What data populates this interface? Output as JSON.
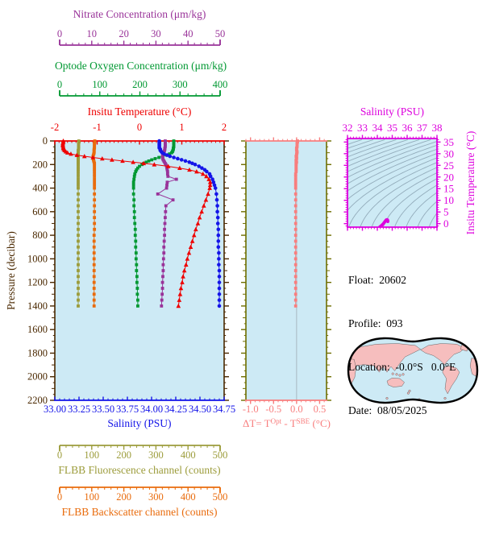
{
  "page": {
    "background": "#FFFFFF",
    "plot_background": "#CDEAF5"
  },
  "float_info": {
    "lines": [
      "Float:  20602",
      "Profile:  093",
      "Location:  -0.0°S   0.0°E",
      "Date:  08/05/2025"
    ]
  },
  "axes": {
    "nitrate": {
      "title": "Nitrate Concentration (μm/kg)",
      "color": "#993399",
      "min": 0,
      "max": 50,
      "ticks": [
        "0",
        "10",
        "20",
        "30",
        "40",
        "50"
      ],
      "minor_step": 2
    },
    "oxygen": {
      "title": "Optode Oxygen Concentration (μm/kg)",
      "color": "#009832",
      "min": 0,
      "max": 400,
      "ticks": [
        "0",
        "100",
        "200",
        "300",
        "400"
      ],
      "minor_step": 20
    },
    "temperature": {
      "title": "Insitu Temperature (°C)",
      "color": "#EE0000",
      "min": -2,
      "max": 2,
      "ticks": [
        "-2",
        "-1",
        "0",
        "1",
        "2"
      ],
      "minor_step": 0.1
    },
    "salinity": {
      "title": "Salinity (PSU)",
      "color": "#1414E8",
      "min": 33,
      "max": 34.75,
      "ticks": [
        "33.00",
        "33.25",
        "33.50",
        "33.75",
        "34.00",
        "34.25",
        "34.50",
        "34.75"
      ],
      "minor_step": 0.05
    },
    "pressure": {
      "title": "Pressure (decibar)",
      "color": "#4A2800",
      "min": 0,
      "max": 2200,
      "ticks": [
        "0",
        "200",
        "400",
        "600",
        "800",
        "1000",
        "1200",
        "1400",
        "1600",
        "1800",
        "2000",
        "2200"
      ],
      "minor_step": 50
    },
    "fluorescence": {
      "title": "FLBB Fluorescence channel (counts)",
      "color": "#9C9C3B",
      "min": 0,
      "max": 500,
      "ticks": [
        "0",
        "100",
        "200",
        "300",
        "400",
        "500"
      ],
      "minor_step": 20
    },
    "backscatter": {
      "title": "FLBB Backscatter channel (counts)",
      "color": "#E96B0C",
      "min": 0,
      "max": 500,
      "ticks": [
        "0",
        "100",
        "200",
        "300",
        "400",
        "500"
      ],
      "minor_step": 20
    },
    "delta_t": {
      "label_prefix": "ΔT= T",
      "label_sup1": "Opt",
      "label_mid": " - T",
      "label_sup2": "SBE",
      "label_suffix": " (°C)",
      "color": "#F87E7E",
      "frame_color": "#6E6E00",
      "min": -1.1,
      "max": 0.65,
      "ticks": [
        "-1.0",
        "-0.5",
        "0.0",
        "0.5"
      ],
      "minor_step": 0.1
    },
    "ts_salinity": {
      "title": "Salinity (PSU)",
      "color": "#DD00DD",
      "min": 32,
      "max": 38,
      "ticks": [
        "32",
        "33",
        "34",
        "35",
        "36",
        "37",
        "38"
      ],
      "minor_step": 0.2
    },
    "ts_temperature": {
      "title": "Insitu Temperature (°C)",
      "color": "#DD00DD",
      "min": -1.5,
      "max": 36.5,
      "ticks": [
        "0",
        "5",
        "10",
        "15",
        "20",
        "25",
        "30",
        "35"
      ],
      "minor_step": 1
    }
  },
  "chart_data": [
    {
      "type": "line",
      "name": "profile-plot",
      "ylabel": "Pressure (decibar)",
      "ylim": [
        0,
        2200
      ],
      "y_pressure_dbar": [
        0,
        10,
        20,
        30,
        40,
        50,
        60,
        70,
        80,
        90,
        100,
        110,
        120,
        130,
        140,
        150,
        160,
        170,
        180,
        190,
        200,
        215,
        230,
        245,
        260,
        280,
        300,
        325,
        350,
        375,
        400,
        450,
        500,
        550,
        600,
        650,
        700,
        750,
        800,
        850,
        900,
        950,
        1000,
        1050,
        1100,
        1150,
        1200,
        1250,
        1300,
        1350,
        1400
      ],
      "series": [
        {
          "name": "Insitu Temperature (°C)",
          "axis": "temperature",
          "color": "#EE0000",
          "marker": "triangle",
          "values": [
            -1.8,
            -1.8,
            -1.81,
            -1.81,
            -1.81,
            -1.8,
            -1.8,
            -1.79,
            -1.77,
            -1.74,
            -1.7,
            -1.62,
            -1.48,
            -1.3,
            -1.1,
            -0.88,
            -0.65,
            -0.4,
            -0.15,
            0.1,
            0.35,
            0.68,
            0.95,
            1.18,
            1.35,
            1.5,
            1.58,
            1.64,
            1.67,
            1.67,
            1.66,
            1.62,
            1.57,
            1.52,
            1.47,
            1.42,
            1.38,
            1.33,
            1.29,
            1.25,
            1.21,
            1.17,
            1.13,
            1.1,
            1.06,
            1.03,
            1.01,
            0.98,
            0.96,
            0.94,
            0.92
          ]
        },
        {
          "name": "Salinity (PSU)",
          "axis": "salinity",
          "color": "#1414E8",
          "marker": "circle",
          "values": [
            34.08,
            34.08,
            34.08,
            34.08,
            34.08,
            34.08,
            34.08,
            34.09,
            34.09,
            34.1,
            34.11,
            34.13,
            34.16,
            34.19,
            34.23,
            34.27,
            34.31,
            34.35,
            34.39,
            34.42,
            34.45,
            34.49,
            34.52,
            34.55,
            34.57,
            34.6,
            34.61,
            34.63,
            34.64,
            34.65,
            34.66,
            34.67,
            34.675,
            34.68,
            34.68,
            34.685,
            34.685,
            34.69,
            34.69,
            34.69,
            34.69,
            34.695,
            34.695,
            34.695,
            34.7,
            34.7,
            34.7,
            34.7,
            34.7,
            34.7,
            34.7
          ]
        },
        {
          "name": "Optode Oxygen Concentration (μm/kg)",
          "axis": "oxygen",
          "color": "#009832",
          "marker": "square",
          "values": [
            281,
            281,
            281,
            281,
            281,
            281,
            280,
            280,
            279,
            278,
            276,
            271,
            264,
            255,
            246,
            237,
            229,
            222,
            216,
            210,
            206,
            200,
            196,
            193,
            191,
            189,
            188,
            187,
            186,
            186,
            186,
            186,
            187,
            187,
            188,
            188,
            189,
            190,
            190,
            191,
            191,
            192,
            192,
            193,
            193,
            194,
            194,
            195,
            195,
            196,
            196
          ]
        },
        {
          "name": "Nitrate Concentration (μm/kg)",
          "axis": "nitrate",
          "color": "#993399",
          "marker": "square",
          "values": [
            32.6,
            32.6,
            32.6,
            32.6,
            32.6,
            32.6,
            32.5,
            32.5,
            32.4,
            32.3,
            32.2,
            32.0,
            31.9,
            31.8,
            31.8,
            31.9,
            32.0,
            32.2,
            32.4,
            32.6,
            32.8,
            33.0,
            33.1,
            33.2,
            33.3,
            33.3,
            33.4,
            35.9,
            33.2,
            33.1,
            33.0,
            30.4,
            34.9,
            32.8,
            32.7,
            32.6,
            32.5,
            32.4,
            32.4,
            32.3,
            32.2,
            32.2,
            32.1,
            32.0,
            32.0,
            31.9,
            31.8,
            31.8,
            31.7,
            31.6,
            31.5
          ]
        },
        {
          "name": "FLBB Fluorescence channel (counts)",
          "axis": "fluorescence",
          "color": "#9C9C3B",
          "marker": "square",
          "values": [
            71,
            71,
            70,
            70,
            70,
            70,
            70,
            70,
            69,
            69,
            69,
            69,
            69,
            69,
            69,
            69,
            69,
            69,
            69,
            69,
            69,
            69,
            69,
            69,
            69,
            69,
            69,
            69,
            69,
            69,
            69,
            69,
            69,
            69,
            69,
            69,
            69,
            69,
            69,
            69,
            69,
            69,
            69,
            69,
            69,
            69,
            69,
            69,
            69,
            69,
            69
          ]
        },
        {
          "name": "FLBB Backscatter channel (counts)",
          "axis": "backscatter",
          "color": "#E96B0C",
          "marker": "square",
          "values": [
            118,
            118,
            117,
            117,
            117,
            117,
            117,
            116,
            116,
            116,
            116,
            115,
            114,
            113,
            113,
            113,
            114,
            115,
            116,
            117,
            117,
            117,
            117,
            117,
            117,
            117,
            117,
            117,
            117,
            117,
            117,
            117,
            117,
            117,
            117,
            117,
            117,
            117,
            116,
            116,
            116,
            116,
            116,
            116,
            116,
            116,
            116,
            116,
            116,
            116,
            116
          ]
        }
      ]
    },
    {
      "type": "line",
      "name": "delta-t-panel",
      "xlabel": "ΔT= T^Opt - T^SBE (°C)",
      "xlim": [
        -1.1,
        0.65
      ],
      "ylim": [
        0,
        2200
      ],
      "y_pressure_dbar": [
        0,
        10,
        20,
        30,
        40,
        50,
        60,
        70,
        80,
        90,
        100,
        110,
        120,
        130,
        140,
        150,
        160,
        170,
        180,
        190,
        200,
        215,
        230,
        245,
        260,
        280,
        300,
        325,
        350,
        375,
        400,
        450,
        500,
        550,
        600,
        650,
        700,
        750,
        800,
        850,
        900,
        950,
        1000,
        1050,
        1100,
        1150,
        1200,
        1250,
        1300,
        1350,
        1400
      ],
      "series": [
        {
          "name": "ΔT = T_Optode - T_SBE (°C)",
          "axis": "delta_t",
          "color": "#F87E7E",
          "marker": "square",
          "values": [
            0.02,
            0.02,
            0.01,
            0.01,
            0.01,
            0.01,
            0.0,
            0.0,
            0.0,
            0.01,
            0.01,
            0.0,
            0.0,
            -0.01,
            0.0,
            0.0,
            -0.01,
            -0.01,
            0.0,
            -0.01,
            -0.01,
            -0.01,
            -0.01,
            -0.01,
            -0.01,
            -0.02,
            -0.02,
            -0.02,
            -0.02,
            -0.02,
            -0.02,
            -0.02,
            -0.02,
            -0.02,
            -0.02,
            -0.02,
            -0.02,
            -0.02,
            -0.02,
            -0.02,
            -0.02,
            -0.02,
            -0.02,
            -0.02,
            -0.02,
            -0.02,
            -0.02,
            -0.02,
            -0.02,
            -0.02,
            -0.02
          ]
        }
      ]
    },
    {
      "type": "scatter",
      "name": "ts-diagram",
      "xlabel": "Salinity (PSU)",
      "ylabel": "Insitu Temperature (°C)",
      "xlim": [
        32,
        38
      ],
      "ylim": [
        -1.5,
        36.5
      ],
      "point_color": "#DD00DD",
      "points_source": "salinity & temperature profile pairs of chart_data[0]",
      "contours": {
        "description": "sigma-theta isopycnal background contours",
        "levels_min": 18.6,
        "levels_max": 30.0,
        "levels_step": 0.6,
        "color": "#93ACBB"
      }
    }
  ],
  "map": {
    "name": "world-map",
    "projection": "global ellipse, Pacific-centered",
    "ocean_color": "#CDEAF5",
    "land_color": "#F6BEBE",
    "outline_color": "#000000"
  }
}
